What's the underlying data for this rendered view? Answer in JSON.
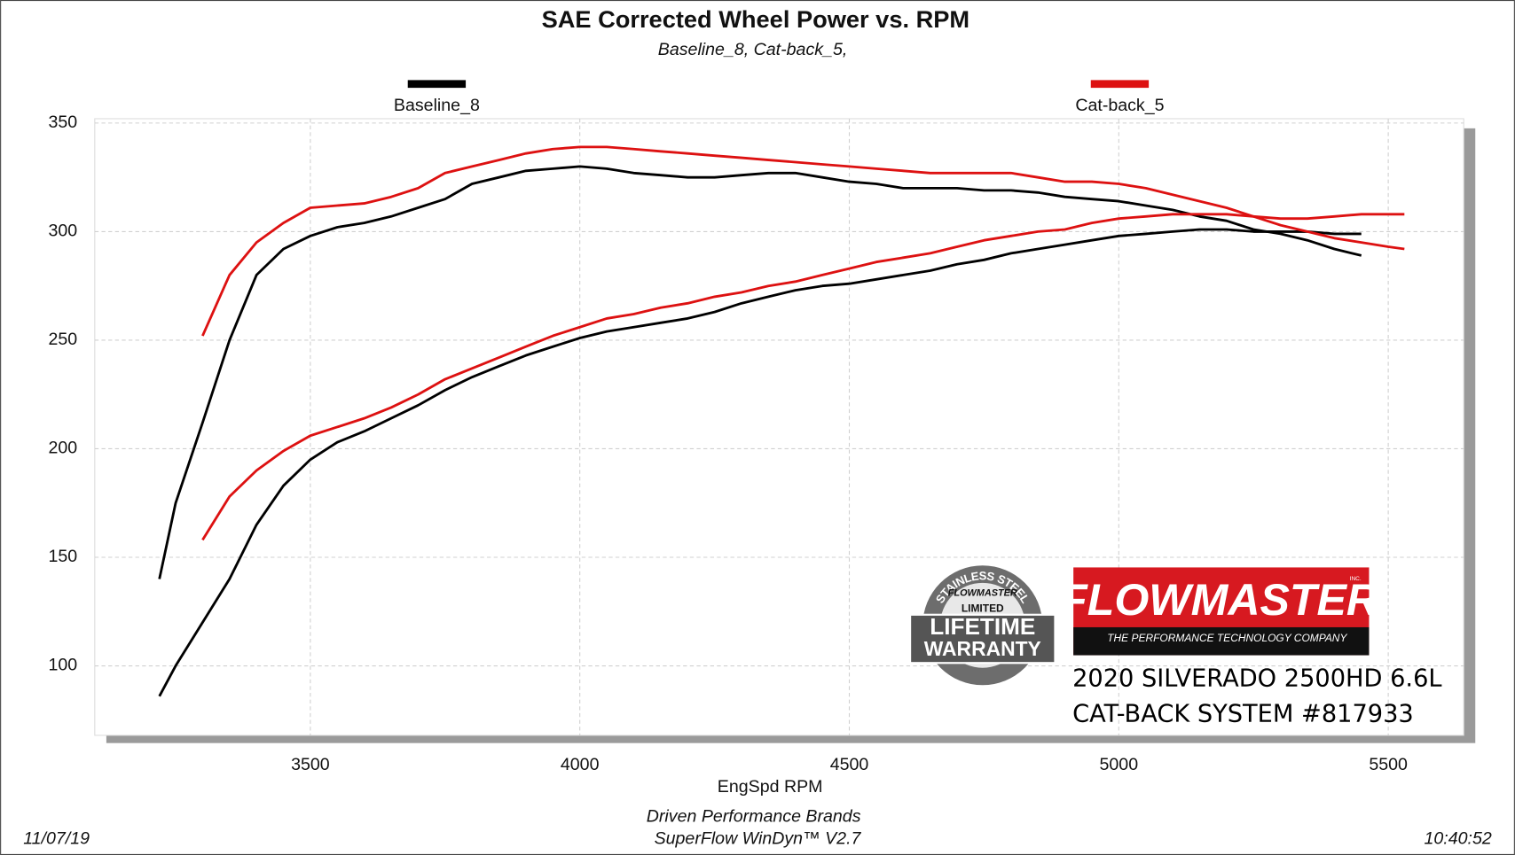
{
  "chart_data": {
    "type": "line",
    "title": "SAE Corrected Wheel Power vs. RPM",
    "subtitle": "Baseline_8, Cat-back_5,",
    "x_label": "EngSpd  RPM",
    "x": [
      3220,
      3250,
      3300,
      3350,
      3400,
      3450,
      3500,
      3550,
      3600,
      3650,
      3700,
      3750,
      3800,
      3850,
      3900,
      3950,
      4000,
      4050,
      4100,
      4150,
      4200,
      4250,
      4300,
      4350,
      4400,
      4450,
      4500,
      4550,
      4600,
      4650,
      4700,
      4750,
      4800,
      4850,
      4900,
      4950,
      5000,
      5050,
      5100,
      5150,
      5200,
      5250,
      5300,
      5350,
      5400,
      5450,
      5500,
      5530
    ],
    "series": [
      {
        "name": "Baseline_8",
        "color": "#000000",
        "values": [
          140,
          175,
          212,
          250,
          280,
          292,
          298,
          302,
          304,
          307,
          311,
          315,
          322,
          325,
          328,
          329,
          330,
          329,
          327,
          326,
          325,
          325,
          326,
          327,
          327,
          325,
          323,
          322,
          320,
          320,
          320,
          319,
          319,
          318,
          316,
          315,
          314,
          312,
          310,
          307,
          305,
          301,
          299,
          296,
          292,
          289,
          null,
          null
        ]
      },
      {
        "color": "#000000",
        "values": [
          86,
          100,
          120,
          140,
          165,
          183,
          195,
          203,
          208,
          214,
          220,
          227,
          233,
          238,
          243,
          247,
          251,
          254,
          256,
          258,
          260,
          263,
          267,
          270,
          273,
          275,
          276,
          278,
          280,
          282,
          285,
          287,
          290,
          292,
          294,
          296,
          298,
          299,
          300,
          301,
          301,
          300,
          300,
          300,
          299,
          299,
          null,
          null
        ]
      },
      {
        "name": "Cat-back_5",
        "color": "#dd1111",
        "values": [
          null,
          null,
          252,
          280,
          295,
          304,
          311,
          312,
          313,
          316,
          320,
          327,
          330,
          333,
          336,
          338,
          339,
          339,
          338,
          337,
          336,
          335,
          334,
          333,
          332,
          331,
          330,
          329,
          328,
          327,
          327,
          327,
          327,
          325,
          323,
          323,
          322,
          320,
          317,
          314,
          311,
          307,
          303,
          300,
          297,
          295,
          293,
          292
        ]
      },
      {
        "color": "#dd1111",
        "values": [
          null,
          null,
          158,
          178,
          190,
          199,
          206,
          210,
          214,
          219,
          225,
          232,
          237,
          242,
          247,
          252,
          256,
          260,
          262,
          265,
          267,
          270,
          272,
          275,
          277,
          280,
          283,
          286,
          288,
          290,
          293,
          296,
          298,
          300,
          301,
          304,
          306,
          307,
          308,
          308,
          308,
          307,
          306,
          306,
          307,
          308,
          308,
          308
        ]
      }
    ],
    "xlim": [
      3100,
      5640
    ],
    "xticks": [
      3500,
      4000,
      4500,
      5000,
      5500
    ],
    "ylim": [
      68,
      352
    ],
    "yticks": [
      100,
      150,
      200,
      250,
      300,
      350
    ],
    "grid": true,
    "legend": "top",
    "footer": [
      "Driven Performance Brands",
      "SuperFlow WinDyn™ V2.7"
    ],
    "date": "11/07/19",
    "time": "10:40:52",
    "annotations": [
      "2020 SILVERADO 2500HD 6.6L",
      "CAT-BACK SYSTEM #817933"
    ],
    "logo": {
      "brand": "FLOWMASTER",
      "inc": "INC.",
      "tagline": "THE PERFORMANCE TECHNOLOGY COMPANY"
    },
    "badge": {
      "arc": "STAINLESS STEEL",
      "brand": "FLOWMASTER",
      "line1": "LIMITED",
      "line2": "LIFETIME",
      "line3": "WARRANTY"
    }
  }
}
